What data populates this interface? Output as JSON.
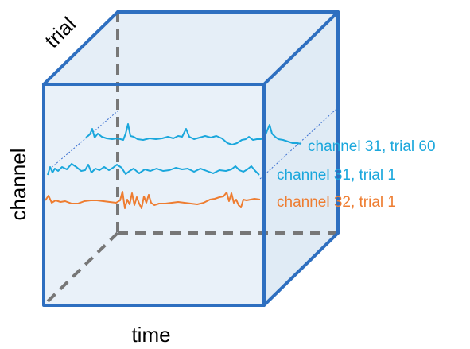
{
  "axes": {
    "time": "time",
    "channel": "channel",
    "trial": "trial"
  },
  "traces": [
    {
      "label": "channel 31, trial 60",
      "color": "#1aa7dc"
    },
    {
      "label": "channel 31, trial 1",
      "color": "#1aa7dc"
    },
    {
      "label": "channel 32, trial 1",
      "color": "#ee7d31"
    }
  ],
  "colors": {
    "cube_edge": "#2e6fc0",
    "cube_face": "#dce8f4",
    "hidden_edge": "#777777",
    "guide_line": "#3a6fd0"
  }
}
